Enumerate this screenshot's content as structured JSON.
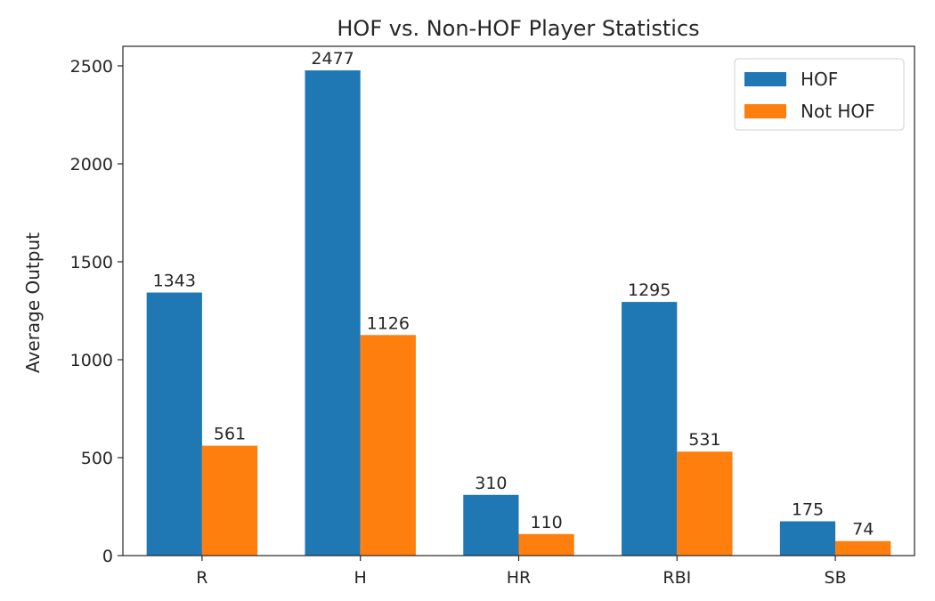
{
  "chart_data": {
    "type": "bar",
    "title": "HOF vs. Non-HOF Player Statistics",
    "xlabel": "",
    "ylabel": "Average Output",
    "categories": [
      "R",
      "H",
      "HR",
      "RBI",
      "SB"
    ],
    "series": [
      {
        "name": "HOF",
        "color": "#1f77b4",
        "values": [
          1343,
          2477,
          310,
          1295,
          175
        ]
      },
      {
        "name": "Not HOF",
        "color": "#ff7f0e",
        "values": [
          561,
          1126,
          110,
          531,
          74
        ]
      }
    ],
    "ylim": [
      0,
      2600
    ],
    "yticks": [
      0,
      500,
      1000,
      1500,
      2000,
      2500
    ],
    "grid": false,
    "legend_position": "top-right",
    "data_labels": true
  }
}
